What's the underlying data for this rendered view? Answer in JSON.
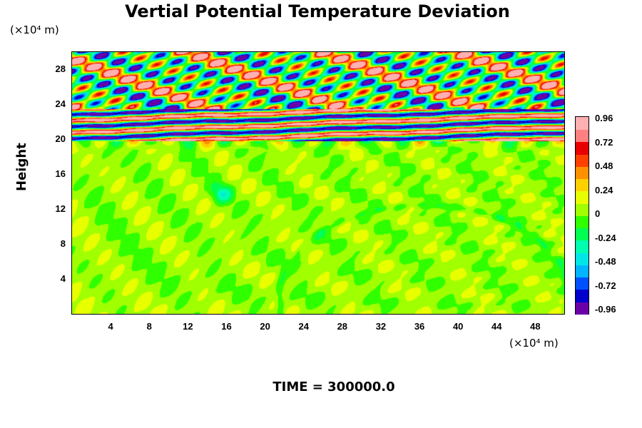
{
  "chart_data": {
    "type": "heatmap",
    "title": "Vertial Potential Temperature Deviation",
    "xlabel": "",
    "ylabel": "Height",
    "x_unit": "(×10⁴ m)",
    "y_unit": "(×10⁴ m)",
    "xlim": [
      0,
      51
    ],
    "ylim": [
      0,
      30
    ],
    "x_ticks": [
      "4",
      "8",
      "12",
      "16",
      "20",
      "24",
      "28",
      "32",
      "36",
      "40",
      "44",
      "48"
    ],
    "y_ticks": [
      "4",
      "8",
      "12",
      "16",
      "20",
      "24",
      "28"
    ],
    "colorbar": {
      "ticks": [
        "0.96",
        "0.72",
        "0.48",
        "0.24",
        "0",
        "-0.24",
        "-0.48",
        "-0.72",
        "-0.96"
      ],
      "range": [
        -0.96,
        0.96
      ],
      "colors": [
        "#6a00a8",
        "#0000cd",
        "#0050ff",
        "#00b4ff",
        "#00e6e6",
        "#00ffb0",
        "#00ff50",
        "#30ff00",
        "#a0ff00",
        "#e8ff00",
        "#ffd000",
        "#ff9000",
        "#ff4000",
        "#e80000",
        "#ff8080",
        "#ffb0b0"
      ]
    },
    "features": {
      "background_value": 0.05,
      "layered_band_y": [
        19.8,
        23.5
      ],
      "wave_region_y": [
        23.5,
        30
      ],
      "lower_region_y": [
        0,
        19.8
      ]
    }
  },
  "footer": {
    "time_label": "TIME = 300000.0"
  }
}
